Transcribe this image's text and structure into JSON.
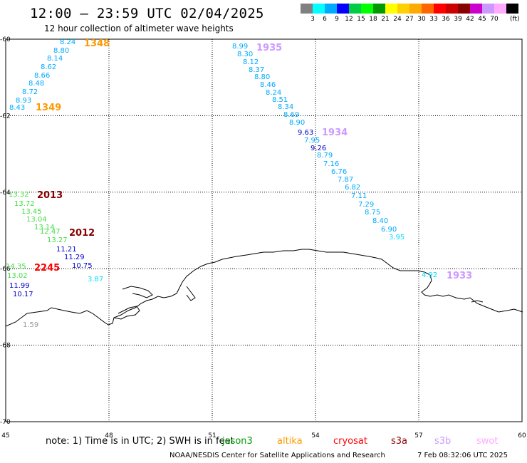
{
  "header": {
    "title": "12:00 – 23:59 UTC 02/04/2025",
    "subtitle": "12 hour collection of altimeter wave heights"
  },
  "colorbar": {
    "unit": "(ft)",
    "colors": [
      "#808080",
      "#00ffff",
      "#00aaff",
      "#0000ff",
      "#00cc44",
      "#00ff00",
      "#009900",
      "#ffff00",
      "#ffd000",
      "#ffaa00",
      "#ff6600",
      "#ff0000",
      "#cc0000",
      "#880000",
      "#cc00cc",
      "#cc99ff",
      "#ffaaff",
      "#000000"
    ],
    "ticks": [
      "3",
      "6",
      "9",
      "12",
      "15",
      "18",
      "21",
      "24",
      "27",
      "30",
      "33",
      "36",
      "39",
      "42",
      "45",
      "70"
    ]
  },
  "axes": {
    "lon_range": [
      45,
      60
    ],
    "lat_range": [
      -60,
      -70
    ],
    "lon_labels": [
      "45",
      "48",
      "51",
      "54",
      "57",
      "60"
    ],
    "lat_labels": [
      "-60",
      "-62",
      "-64",
      "-66",
      "-68",
      "-70"
    ]
  },
  "tracks": [
    {
      "id": "1348",
      "label": "1348",
      "label_color": "#ff9900",
      "points": [
        {
          "v": "8.24",
          "c": "#00aaff"
        },
        {
          "v": "8.80",
          "c": "#00aaff"
        },
        {
          "v": "8.14",
          "c": "#00aaff"
        },
        {
          "v": "8.62",
          "c": "#00aaff"
        },
        {
          "v": "8.66",
          "c": "#00aaff"
        },
        {
          "v": "8.48",
          "c": "#00aaff"
        },
        {
          "v": "8.72",
          "c": "#00aaff"
        },
        {
          "v": "8.93",
          "c": "#00aaff"
        },
        {
          "v": "8.43",
          "c": "#00aaff"
        }
      ]
    },
    {
      "id": "1349",
      "label": "1349",
      "label_color": "#ff9900",
      "points": []
    },
    {
      "id": "1935",
      "label": "1935",
      "label_color": "#cc99ff",
      "points": [
        {
          "v": "8.99",
          "c": "#00aaff"
        },
        {
          "v": "8.30",
          "c": "#00aaff"
        },
        {
          "v": "8.12",
          "c": "#00aaff"
        },
        {
          "v": "8.37",
          "c": "#00aaff"
        },
        {
          "v": "8.80",
          "c": "#00aaff"
        },
        {
          "v": "8.46",
          "c": "#00aaff"
        },
        {
          "v": "8.24",
          "c": "#00aaff"
        },
        {
          "v": "8.51",
          "c": "#00aaff"
        },
        {
          "v": "8.34",
          "c": "#00aaff"
        },
        {
          "v": "8.69",
          "c": "#00aaff"
        },
        {
          "v": "8.90",
          "c": "#00aaff"
        }
      ]
    },
    {
      "id": "1934",
      "label": "1934",
      "label_color": "#cc99ff",
      "points": [
        {
          "v": "9.63",
          "c": "#0000cc"
        },
        {
          "v": "7.95",
          "c": "#00aaff"
        },
        {
          "v": "9.26",
          "c": "#0000cc"
        },
        {
          "v": "8.79",
          "c": "#00aaff"
        },
        {
          "v": "7.16",
          "c": "#00aaff"
        },
        {
          "v": "6.76",
          "c": "#00aaff"
        },
        {
          "v": "7.87",
          "c": "#00aaff"
        },
        {
          "v": "6.82",
          "c": "#00aaff"
        },
        {
          "v": "7.11",
          "c": "#00aaff"
        },
        {
          "v": "7.29",
          "c": "#00aaff"
        },
        {
          "v": "8.75",
          "c": "#00aaff"
        },
        {
          "v": "8.40",
          "c": "#00aaff"
        },
        {
          "v": "6.90",
          "c": "#00aaff"
        },
        {
          "v": "3.95",
          "c": "#00ddff"
        }
      ]
    },
    {
      "id": "2013",
      "label": "2013",
      "label_color": "#880000",
      "points": [
        {
          "v": "13.32",
          "c": "#44dd44"
        },
        {
          "v": "13.72",
          "c": "#44dd44"
        },
        {
          "v": "13.45",
          "c": "#44dd44"
        },
        {
          "v": "13.04",
          "c": "#44dd44"
        },
        {
          "v": "13.14",
          "c": "#44dd44"
        },
        {
          "v": "12.47",
          "c": "#44dd44"
        },
        {
          "v": "13.27",
          "c": "#44dd44"
        }
      ]
    },
    {
      "id": "2012",
      "label": "2012",
      "label_color": "#880000",
      "points": [
        {
          "v": "11.21",
          "c": "#0000cc"
        },
        {
          "v": "11.29",
          "c": "#0000cc"
        },
        {
          "v": "10.75",
          "c": "#0000cc"
        },
        {
          "v": "3.87",
          "c": "#00ddff"
        }
      ]
    },
    {
      "id": "2245",
      "label": "2245",
      "label_color": "#ff0000",
      "points": [
        {
          "v": "14.35",
          "c": "#44dd44"
        },
        {
          "v": "13.02",
          "c": "#44dd44"
        },
        {
          "v": "11.99",
          "c": "#0000cc"
        },
        {
          "v": "10.17",
          "c": "#0000cc"
        },
        {
          "v": "1.59",
          "c": "#999999"
        }
      ]
    },
    {
      "id": "1933",
      "label": "1933",
      "label_color": "#cc99ff",
      "points": [
        {
          "v": "4.92",
          "c": "#00ddff"
        }
      ]
    }
  ],
  "footer": {
    "note_start": "note:  1) Time is in UTC; 2) SWH is in feet",
    "legend": [
      {
        "name": "jason3",
        "color": "#009900"
      },
      {
        "name": "altika",
        "color": "#ff9900"
      },
      {
        "name": "cryosat",
        "color": "#ff0000"
      },
      {
        "name": "s3a",
        "color": "#880000"
      },
      {
        "name": "s3b",
        "color": "#cc99ff"
      },
      {
        "name": "swot",
        "color": "#ffaaff"
      }
    ],
    "credit": "NOAA/NESDIS Center for Satellite Applications and Research",
    "timestamp": "7 Feb 08:32:06 UTC 2025"
  }
}
